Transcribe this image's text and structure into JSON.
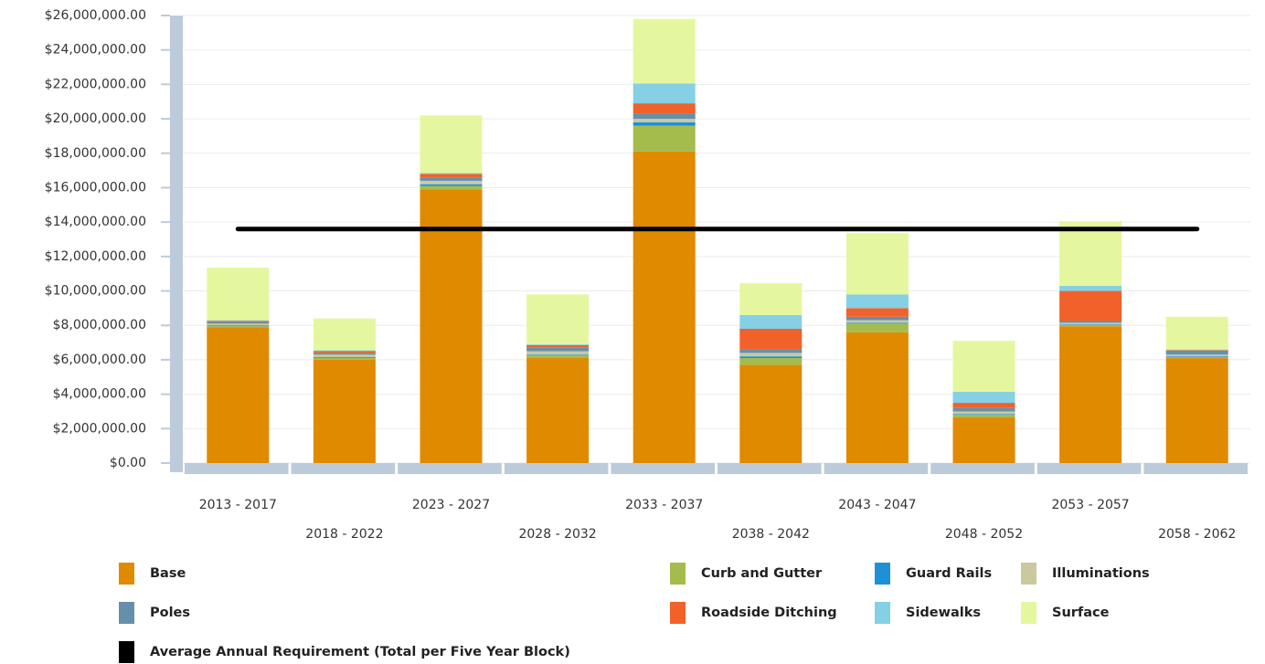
{
  "chart_data": {
    "type": "bar",
    "stacked": true,
    "categories": [
      "2013 - 2017",
      "2018 - 2022",
      "2023 - 2027",
      "2028 - 2032",
      "2033 - 2037",
      "2038 - 2042",
      "2043 - 2047",
      "2048 - 2052",
      "2053 - 2057",
      "2058 - 2062"
    ],
    "series": [
      {
        "name": "Base",
        "color": "#e08a00",
        "values": [
          7900000,
          6000000,
          15900000,
          6100000,
          18100000,
          5700000,
          7600000,
          2650000,
          7950000,
          6100000
        ]
      },
      {
        "name": "Curb and Gutter",
        "color": "#a4bc4c",
        "values": [
          50000,
          100000,
          200000,
          150000,
          1500000,
          400000,
          500000,
          150000,
          50000,
          50000
        ]
      },
      {
        "name": "Guard Rails",
        "color": "#1e90d8",
        "values": [
          50000,
          50000,
          100000,
          50000,
          200000,
          100000,
          50000,
          50000,
          50000,
          50000
        ]
      },
      {
        "name": "Illuminations",
        "color": "#cbc8a0",
        "values": [
          100000,
          150000,
          200000,
          200000,
          200000,
          200000,
          150000,
          150000,
          100000,
          100000
        ]
      },
      {
        "name": "Poles",
        "color": "#6690aa",
        "values": [
          100000,
          100000,
          200000,
          200000,
          300000,
          200000,
          200000,
          200000,
          100000,
          200000
        ]
      },
      {
        "name": "Roadside Ditching",
        "color": "#f0622a",
        "values": [
          50000,
          100000,
          200000,
          150000,
          600000,
          1200000,
          500000,
          300000,
          1750000,
          50000
        ]
      },
      {
        "name": "Sidewalks",
        "color": "#85d0e4",
        "values": [
          50000,
          50000,
          50000,
          50000,
          1150000,
          800000,
          800000,
          640000,
          300000,
          50000
        ]
      },
      {
        "name": "Surface",
        "color": "#e4f79e",
        "values": [
          3050000,
          1850000,
          3350000,
          2900000,
          3750000,
          1850000,
          3550000,
          2960000,
          3750000,
          1900000
        ]
      },
      {
        "name": "Average Annual Requirement (Total per Five Year Block)",
        "color": "#000000",
        "type": "line",
        "values": [
          13600000,
          13600000,
          13600000,
          13600000,
          13600000,
          13600000,
          13600000,
          13600000,
          13600000,
          13600000
        ]
      }
    ],
    "ylim": [
      0,
      26000000
    ],
    "yticks": [
      {
        "value": 0,
        "label": "$0.00"
      },
      {
        "value": 2000000,
        "label": "$2,000,000.00"
      },
      {
        "value": 4000000,
        "label": "$4,000,000.00"
      },
      {
        "value": 6000000,
        "label": "$6,000,000.00"
      },
      {
        "value": 8000000,
        "label": "$8,000,000.00"
      },
      {
        "value": 10000000,
        "label": "$10,000,000.00"
      },
      {
        "value": 12000000,
        "label": "$12,000,000.00"
      },
      {
        "value": 14000000,
        "label": "$14,000,000.00"
      },
      {
        "value": 16000000,
        "label": "$16,000,000.00"
      },
      {
        "value": 18000000,
        "label": "$18,000,000.00"
      },
      {
        "value": 20000000,
        "label": "$20,000,000.00"
      },
      {
        "value": 22000000,
        "label": "$22,000,000.00"
      },
      {
        "value": 24000000,
        "label": "$24,000,000.00"
      },
      {
        "value": 26000000,
        "label": "$26,000,000.00"
      }
    ],
    "grid": true,
    "legend": "bottom"
  }
}
